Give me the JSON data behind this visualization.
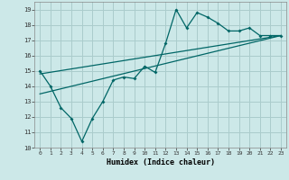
{
  "xlabel": "Humidex (Indice chaleur)",
  "bg_color": "#cce8e8",
  "grid_color": "#aacccc",
  "line_color": "#006666",
  "xlim": [
    -0.5,
    23.5
  ],
  "ylim": [
    10,
    19.5
  ],
  "yticks": [
    10,
    11,
    12,
    13,
    14,
    15,
    16,
    17,
    18,
    19
  ],
  "xticks": [
    0,
    1,
    2,
    3,
    4,
    5,
    6,
    7,
    8,
    9,
    10,
    11,
    12,
    13,
    14,
    15,
    16,
    17,
    18,
    19,
    20,
    21,
    22,
    23
  ],
  "line1_x": [
    0,
    1,
    2,
    3,
    4,
    5,
    6,
    7,
    8,
    9,
    10,
    11,
    12,
    13,
    14,
    15,
    16,
    17,
    18,
    19,
    20,
    21,
    22,
    23
  ],
  "line1_y": [
    15.0,
    14.0,
    12.6,
    11.9,
    10.4,
    11.9,
    13.0,
    14.4,
    14.6,
    14.5,
    15.3,
    14.9,
    16.8,
    19.0,
    17.8,
    18.8,
    18.5,
    18.1,
    17.6,
    17.6,
    17.8,
    17.3,
    17.3,
    17.3
  ],
  "line2_x": [
    0,
    23
  ],
  "line2_y": [
    14.8,
    17.3
  ],
  "line3_x": [
    0,
    23
  ],
  "line3_y": [
    13.5,
    17.3
  ]
}
